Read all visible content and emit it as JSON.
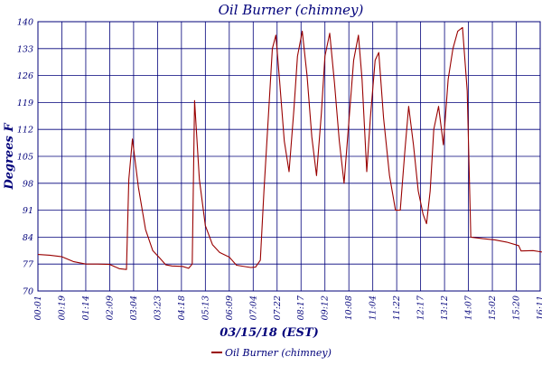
{
  "chart_data": {
    "type": "line",
    "title": "Oil Burner (chimney)",
    "xlabel": "03/15/18 (EST)",
    "ylabel": "Degrees F",
    "ylim": [
      70,
      140
    ],
    "yticks": [
      70,
      77,
      84,
      91,
      98,
      105,
      112,
      119,
      126,
      133,
      140
    ],
    "xticks": [
      "00:01",
      "00:19",
      "01:14",
      "02:09",
      "03:04",
      "03:23",
      "04:18",
      "05:13",
      "06:09",
      "07:04",
      "07:22",
      "08:17",
      "09:12",
      "10:08",
      "11:04",
      "11:22",
      "12:17",
      "13:12",
      "14:07",
      "15:02",
      "15:20",
      "16:11"
    ],
    "grid": true,
    "legend": "bottom-center",
    "colors": {
      "series": "#990000",
      "axis_text": "#00007a",
      "grid": "#00007a"
    },
    "series": [
      {
        "name": "Oil Burner (chimney)",
        "points": [
          [
            0.0,
            79.5
          ],
          [
            0.5,
            79.3
          ],
          [
            1.0,
            78.9
          ],
          [
            1.5,
            77.6
          ],
          [
            2.0,
            77.0
          ],
          [
            2.5,
            77.0
          ],
          [
            3.0,
            76.9
          ],
          [
            3.4,
            75.8
          ],
          [
            3.7,
            75.6
          ],
          [
            3.8,
            99.0
          ],
          [
            3.95,
            109.5
          ],
          [
            4.2,
            97.0
          ],
          [
            4.5,
            86.0
          ],
          [
            4.8,
            80.5
          ],
          [
            5.1,
            78.5
          ],
          [
            5.35,
            76.8
          ],
          [
            5.6,
            76.5
          ],
          [
            6.05,
            76.4
          ],
          [
            6.3,
            75.9
          ],
          [
            6.45,
            77.0
          ],
          [
            6.55,
            119.5
          ],
          [
            6.75,
            99.0
          ],
          [
            7.0,
            87.0
          ],
          [
            7.3,
            82.0
          ],
          [
            7.6,
            80.0
          ],
          [
            8.0,
            78.8
          ],
          [
            8.3,
            76.7
          ],
          [
            8.9,
            76.1
          ],
          [
            9.1,
            76.2
          ],
          [
            9.3,
            78.0
          ],
          [
            9.45,
            96.0
          ],
          [
            9.65,
            117.0
          ],
          [
            9.8,
            133.0
          ],
          [
            9.95,
            136.5
          ],
          [
            10.1,
            125.0
          ],
          [
            10.3,
            109.0
          ],
          [
            10.5,
            101.0
          ],
          [
            10.7,
            117.0
          ],
          [
            10.85,
            131.0
          ],
          [
            11.05,
            137.5
          ],
          [
            11.25,
            126.0
          ],
          [
            11.45,
            110.0
          ],
          [
            11.65,
            100.0
          ],
          [
            11.85,
            116.0
          ],
          [
            12.0,
            131.0
          ],
          [
            12.2,
            137.0
          ],
          [
            12.4,
            124.0
          ],
          [
            12.6,
            109.0
          ],
          [
            12.8,
            98.0
          ],
          [
            13.0,
            114.0
          ],
          [
            13.2,
            130.0
          ],
          [
            13.4,
            136.5
          ],
          [
            13.55,
            125.0
          ],
          [
            13.75,
            101.0
          ],
          [
            13.9,
            115.0
          ],
          [
            14.1,
            130.0
          ],
          [
            14.25,
            132.0
          ],
          [
            14.45,
            115.0
          ],
          [
            14.7,
            100.0
          ],
          [
            14.95,
            91.0
          ],
          [
            15.15,
            91.0
          ],
          [
            15.35,
            107.0
          ],
          [
            15.5,
            118.0
          ],
          [
            15.7,
            108.0
          ],
          [
            15.9,
            96.0
          ],
          [
            16.1,
            90.0
          ],
          [
            16.25,
            87.5
          ],
          [
            16.4,
            96.0
          ],
          [
            16.55,
            112.0
          ],
          [
            16.75,
            118.0
          ],
          [
            16.95,
            108.0
          ],
          [
            17.15,
            125.0
          ],
          [
            17.35,
            133.0
          ],
          [
            17.55,
            137.5
          ],
          [
            17.75,
            138.5
          ],
          [
            17.95,
            122.0
          ],
          [
            18.1,
            84.0
          ],
          [
            18.6,
            83.6
          ],
          [
            19.1,
            83.3
          ],
          [
            19.6,
            82.7
          ],
          [
            20.1,
            81.8
          ],
          [
            20.2,
            80.4
          ],
          [
            20.7,
            80.5
          ],
          [
            21.2,
            80.0
          ],
          [
            21.7,
            79.6
          ],
          [
            22.2,
            79.0
          ],
          [
            22.7,
            79.1
          ],
          [
            23.2,
            78.9
          ],
          [
            23.7,
            78.0
          ],
          [
            24.2,
            77.8
          ],
          [
            24.7,
            77.6
          ],
          [
            25.2,
            77.2
          ],
          [
            25.7,
            76.8
          ],
          [
            26.2,
            76.5
          ],
          [
            26.7,
            76.3
          ],
          [
            27.2,
            76.2
          ],
          [
            27.6,
            76.0
          ],
          [
            27.9,
            77.5
          ],
          [
            28.1,
            90.0
          ],
          [
            28.3,
            113.0
          ],
          [
            28.45,
            126.0
          ],
          [
            28.6,
            127.5
          ],
          [
            28.8,
            119.0
          ],
          [
            29.0,
            103.0
          ],
          [
            29.2,
            91.0
          ],
          [
            29.4,
            85.0
          ],
          [
            29.6,
            82.0
          ],
          [
            29.8,
            80.5
          ],
          [
            30.0,
            79.5
          ],
          [
            30.2,
            80.0
          ],
          [
            30.45,
            80.5
          ],
          [
            30.55,
            79.8
          ],
          [
            30.7,
            79.8
          ],
          [
            30.9,
            80.0
          ]
        ]
      }
    ]
  }
}
